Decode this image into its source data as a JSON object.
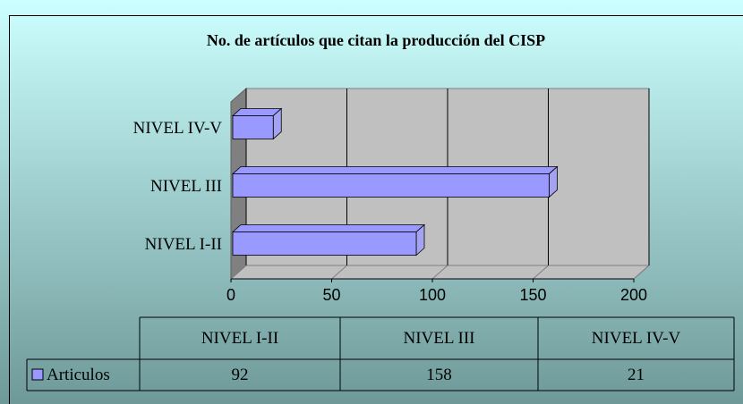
{
  "chart_data": {
    "type": "bar",
    "orientation": "horizontal",
    "three_d": true,
    "title": "No. de artículos que citan la producción del CISP",
    "categories": [
      "NIVEL I-II",
      "NIVEL III",
      "NIVEL IV-V"
    ],
    "series": [
      {
        "name": "Articulos",
        "color": "#9999ff",
        "values": [
          92,
          158,
          21
        ]
      }
    ],
    "xlim": [
      0,
      200
    ],
    "xticks": [
      0,
      50,
      100,
      150,
      200
    ],
    "grid": true,
    "data_table": true
  }
}
